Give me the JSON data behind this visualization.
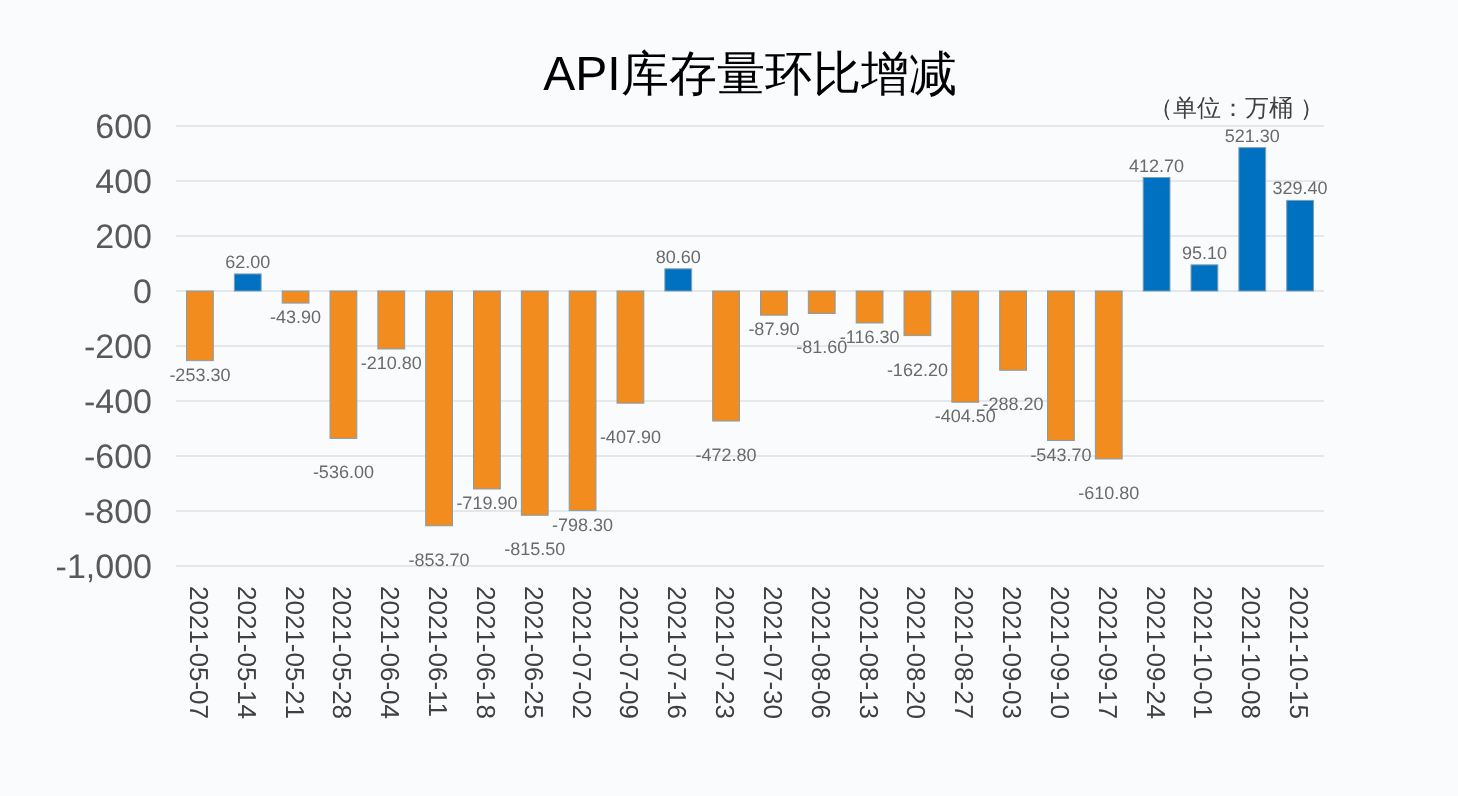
{
  "chart_data": {
    "type": "bar",
    "title": "API库存量环比增减",
    "annotations": [
      "（单位：万桶 ）"
    ],
    "categories": [
      "2021-05-07",
      "2021-05-14",
      "2021-05-21",
      "2021-05-28",
      "2021-06-04",
      "2021-06-11",
      "2021-06-18",
      "2021-06-25",
      "2021-07-02",
      "2021-07-09",
      "2021-07-16",
      "2021-07-23",
      "2021-07-30",
      "2021-08-06",
      "2021-08-13",
      "2021-08-20",
      "2021-08-27",
      "2021-09-03",
      "2021-09-10",
      "2021-09-17",
      "2021-09-24",
      "2021-10-01",
      "2021-10-08",
      "2021-10-15"
    ],
    "values": [
      -253.3,
      62.0,
      -43.9,
      -536.0,
      -210.8,
      -853.7,
      -719.9,
      -815.5,
      -798.3,
      -407.9,
      80.6,
      -472.8,
      -87.9,
      -81.6,
      -116.3,
      -162.2,
      -404.5,
      -288.2,
      -543.7,
      -610.8,
      412.7,
      95.1,
      521.3,
      329.4
    ],
    "value_labels": [
      "-253.30",
      "62.00",
      "-43.90",
      "-536.00",
      "-210.80",
      "-853.70",
      "-719.90",
      "-815.50",
      "-798.30",
      "-407.90",
      "80.60",
      "-472.80",
      "-87.90",
      "-81.60",
      "-116.30",
      "-162.20",
      "-404.50",
      "-288.20",
      "-543.70",
      "-610.80",
      "412.70",
      "95.10",
      "521.30",
      "329.40"
    ],
    "colors": [
      "#f28c1e",
      "#0070c0",
      "#f28c1e",
      "#f28c1e",
      "#f28c1e",
      "#f28c1e",
      "#f28c1e",
      "#f28c1e",
      "#f28c1e",
      "#f28c1e",
      "#0070c0",
      "#f28c1e",
      "#f28c1e",
      "#f28c1e",
      "#f28c1e",
      "#f28c1e",
      "#f28c1e",
      "#f28c1e",
      "#f28c1e",
      "#f28c1e",
      "#0070c0",
      "#0070c0",
      "#0070c0",
      "#0070c0"
    ],
    "ylim": [
      -1000,
      600
    ],
    "yticks": [
      600,
      400,
      200,
      0,
      -200,
      -400,
      -600,
      -800,
      {
        "value": -1000,
        "label": "-1,000"
      }
    ],
    "grid": "y"
  }
}
